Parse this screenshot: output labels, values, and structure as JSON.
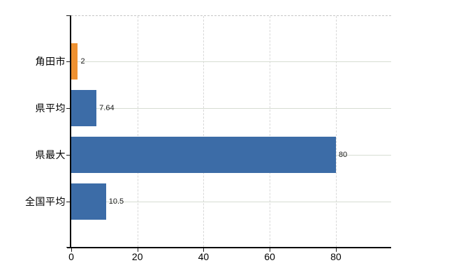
{
  "chart_data": {
    "type": "bar",
    "orientation": "horizontal",
    "title": "",
    "xlabel": "",
    "ylabel": "",
    "categories": [
      "角田市",
      "県平均",
      "県最大",
      "全国平均"
    ],
    "values": [
      2,
      7.64,
      80,
      10.5
    ],
    "value_labels": [
      "2",
      "7.64",
      "80",
      "10.5"
    ],
    "bar_colors": [
      "#ee9131",
      "#3c6ca7",
      "#3c6ca7",
      "#3c6ca7"
    ],
    "xticks": [
      0,
      20,
      40,
      60,
      80
    ],
    "xtick_labels": [
      "0",
      "20",
      "40",
      "60",
      "80"
    ],
    "xlim": [
      0,
      96.7
    ],
    "grid": "vertical dashed lines at x ticks; light horizontal lines at category centers; dashed plot top border",
    "legend": "none"
  },
  "colors": {
    "bar_blue": "#3c6ca7",
    "bar_orange": "#ee9131",
    "axis": "#000000",
    "grid_vertical": "#d8d8d8",
    "grid_horizontal": "#d6ddd2",
    "plot_border_top": "#c6c6c6",
    "background": "#ffffff",
    "text": "#000000"
  }
}
